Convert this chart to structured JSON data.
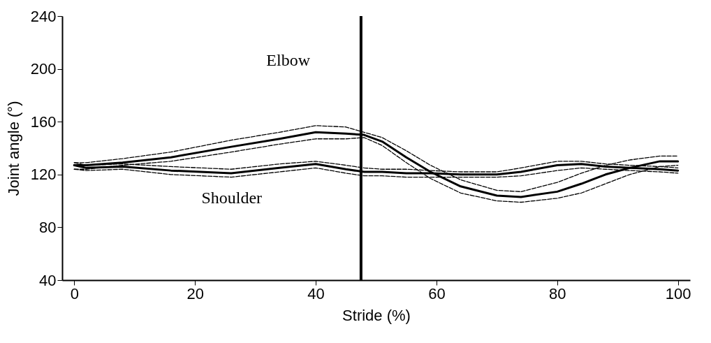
{
  "chart_data": {
    "type": "line",
    "xlabel": "Stride (%)",
    "ylabel": "Joint angle (°)",
    "x": [
      0,
      2,
      8,
      16,
      26,
      34,
      40,
      45,
      48,
      51,
      55,
      59,
      64,
      70,
      74,
      80,
      84,
      88,
      92,
      97,
      100
    ],
    "series": [
      {
        "color": "#000000",
        "line_style": "solid",
        "values": [
          127,
          127,
          129,
          133,
          141,
          147,
          152,
          151,
          150,
          145,
          133,
          122,
          111,
          104,
          103,
          107,
          113,
          120,
          125,
          130,
          130
        ]
      },
      {
        "color": "#000000",
        "line_style": "dashed",
        "values": [
          129,
          129,
          132,
          137,
          146,
          152,
          157,
          156,
          152,
          148,
          138,
          127,
          116,
          108,
          107,
          114,
          121,
          127,
          131,
          134,
          134
        ]
      },
      {
        "color": "#000000",
        "line_style": "dashed",
        "values": [
          124,
          124,
          127,
          130,
          137,
          143,
          147,
          147,
          148,
          142,
          129,
          117,
          106,
          100,
          99,
          102,
          106,
          113,
          120,
          126,
          127
        ]
      },
      {
        "color": "#000000",
        "line_style": "solid",
        "values": [
          127,
          125,
          126,
          123,
          121,
          125,
          128,
          124,
          122,
          122,
          121,
          121,
          120,
          120,
          122,
          127,
          128,
          126,
          125,
          124,
          123
        ]
      },
      {
        "color": "#000000",
        "line_style": "dashed",
        "values": [
          129,
          127,
          128,
          126,
          124,
          128,
          130,
          127,
          125,
          124,
          124,
          123,
          122,
          122,
          125,
          130,
          130,
          128,
          127,
          126,
          125
        ]
      },
      {
        "color": "#000000",
        "line_style": "dashed",
        "values": [
          124,
          123,
          124,
          120,
          118,
          122,
          125,
          121,
          119,
          119,
          118,
          118,
          118,
          118,
          119,
          123,
          125,
          124,
          123,
          122,
          121
        ]
      }
    ],
    "annotations": [
      "Elbow",
      "Shoulder"
    ],
    "ref_lines": [
      {
        "axis": "x",
        "value": 47.5,
        "color": "#000000"
      }
    ],
    "xlim": [
      -2,
      102
    ],
    "xticks": [
      0,
      20,
      40,
      60,
      80,
      100
    ],
    "ylim": [
      40,
      240
    ],
    "yticks": [
      40,
      80,
      120,
      160,
      200,
      240
    ],
    "grid": false,
    "marker": "none"
  }
}
